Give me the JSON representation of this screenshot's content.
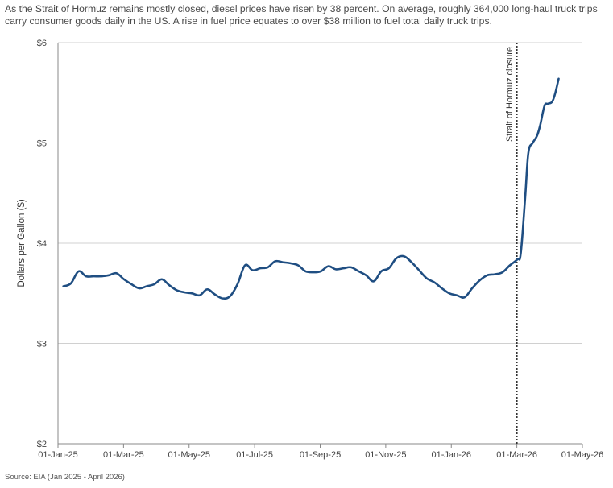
{
  "header": {
    "subtitle": "As the Strait of Hormuz remains mostly closed, diesel prices have risen by 38 percent. On average, roughly 364,000 long-haul truck trips carry consumer goods daily in the US. A rise in fuel price equates to over $38 million to fuel total daily truck trips."
  },
  "footer": {
    "source": "Source: EIA (Jan 2025 - April 2026)"
  },
  "colors": {
    "series": "#1f4e82",
    "grid": "#d0d0d0",
    "axis": "#888888",
    "annotation_line": "#333333"
  },
  "chart_data": {
    "type": "line",
    "title": "",
    "xlabel": "",
    "ylabel": "Dollars per Gallon ($)",
    "x_ticks": [
      "01-Jan-25",
      "01-Mar-25",
      "01-May-25",
      "01-Jul-25",
      "01-Sep-25",
      "01-Nov-25",
      "01-Jan-26",
      "01-Mar-26",
      "01-May-26"
    ],
    "xlim": [
      "2025-01-01",
      "2026-05-01"
    ],
    "y_ticks": [
      "$2",
      "$3",
      "$4",
      "$5",
      "$6"
    ],
    "ylim": [
      2,
      6
    ],
    "grid": "horizontal",
    "series": [
      {
        "name": "",
        "points": [
          [
            "2025-01-06",
            3.57
          ],
          [
            "2025-01-13",
            3.6
          ],
          [
            "2025-01-20",
            3.72
          ],
          [
            "2025-01-27",
            3.67
          ],
          [
            "2025-02-03",
            3.67
          ],
          [
            "2025-02-10",
            3.67
          ],
          [
            "2025-02-17",
            3.68
          ],
          [
            "2025-02-24",
            3.7
          ],
          [
            "2025-03-03",
            3.64
          ],
          [
            "2025-03-10",
            3.59
          ],
          [
            "2025-03-17",
            3.55
          ],
          [
            "2025-03-24",
            3.57
          ],
          [
            "2025-03-31",
            3.59
          ],
          [
            "2025-04-07",
            3.64
          ],
          [
            "2025-04-14",
            3.58
          ],
          [
            "2025-04-21",
            3.53
          ],
          [
            "2025-04-28",
            3.51
          ],
          [
            "2025-05-05",
            3.5
          ],
          [
            "2025-05-12",
            3.48
          ],
          [
            "2025-05-19",
            3.54
          ],
          [
            "2025-05-26",
            3.49
          ],
          [
            "2025-06-02",
            3.45
          ],
          [
            "2025-06-09",
            3.47
          ],
          [
            "2025-06-16",
            3.59
          ],
          [
            "2025-06-23",
            3.78
          ],
          [
            "2025-06-30",
            3.73
          ],
          [
            "2025-07-07",
            3.75
          ],
          [
            "2025-07-14",
            3.76
          ],
          [
            "2025-07-21",
            3.82
          ],
          [
            "2025-07-28",
            3.81
          ],
          [
            "2025-08-04",
            3.8
          ],
          [
            "2025-08-11",
            3.78
          ],
          [
            "2025-08-18",
            3.72
          ],
          [
            "2025-08-25",
            3.71
          ],
          [
            "2025-09-01",
            3.72
          ],
          [
            "2025-09-08",
            3.77
          ],
          [
            "2025-09-15",
            3.74
          ],
          [
            "2025-09-22",
            3.75
          ],
          [
            "2025-09-29",
            3.76
          ],
          [
            "2025-10-06",
            3.72
          ],
          [
            "2025-10-13",
            3.68
          ],
          [
            "2025-10-20",
            3.62
          ],
          [
            "2025-10-27",
            3.72
          ],
          [
            "2025-11-03",
            3.75
          ],
          [
            "2025-11-10",
            3.85
          ],
          [
            "2025-11-17",
            3.87
          ],
          [
            "2025-11-24",
            3.81
          ],
          [
            "2025-12-01",
            3.73
          ],
          [
            "2025-12-08",
            3.65
          ],
          [
            "2025-12-15",
            3.61
          ],
          [
            "2025-12-22",
            3.55
          ],
          [
            "2025-12-29",
            3.5
          ],
          [
            "2026-01-05",
            3.48
          ],
          [
            "2026-01-12",
            3.46
          ],
          [
            "2026-01-19",
            3.55
          ],
          [
            "2026-01-26",
            3.63
          ],
          [
            "2026-02-02",
            3.68
          ],
          [
            "2026-02-09",
            3.69
          ],
          [
            "2026-02-16",
            3.71
          ],
          [
            "2026-02-23",
            3.78
          ],
          [
            "2026-03-02",
            3.84
          ],
          [
            "2026-03-05",
            3.9
          ],
          [
            "2026-03-09",
            4.45
          ],
          [
            "2026-03-12",
            4.9
          ],
          [
            "2026-03-16",
            5.0
          ],
          [
            "2026-03-20",
            5.07
          ],
          [
            "2026-03-23",
            5.18
          ],
          [
            "2026-03-27",
            5.37
          ],
          [
            "2026-03-30",
            5.39
          ],
          [
            "2026-04-03",
            5.41
          ],
          [
            "2026-04-06",
            5.5
          ],
          [
            "2026-04-09",
            5.64
          ]
        ]
      }
    ],
    "annotations": [
      {
        "date": "2026-02-28",
        "label": "Strait of Hormuz closure",
        "style": "dotted vertical line"
      }
    ]
  }
}
